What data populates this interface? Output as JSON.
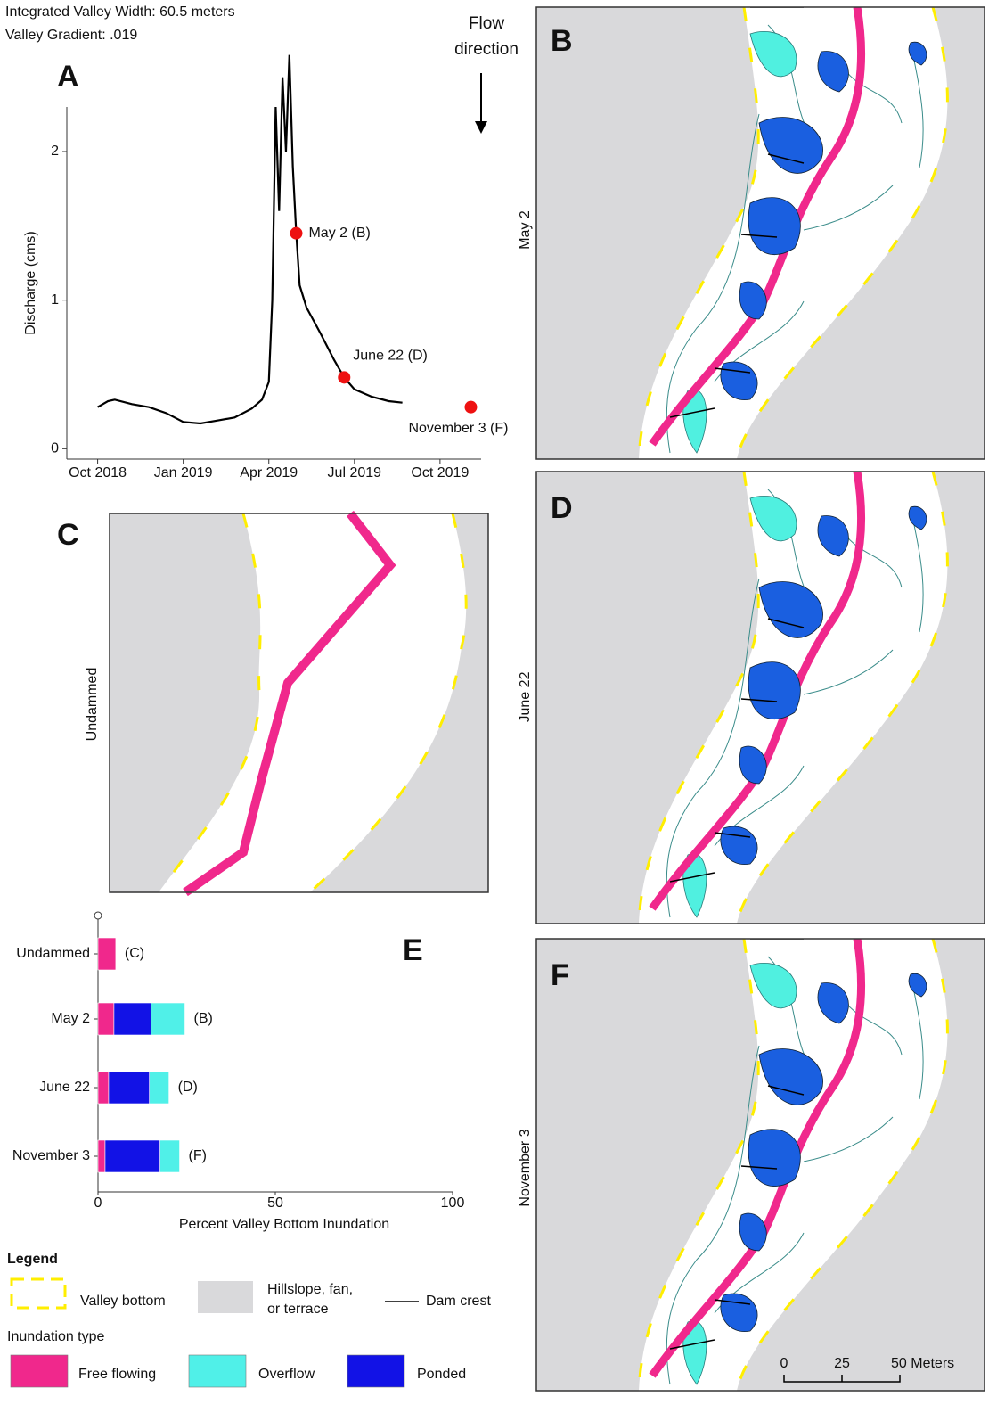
{
  "header": {
    "width_note": "Integrated Valley Width: 60.5 meters",
    "gradient_note": "Valley Gradient: .019"
  },
  "panels": {
    "a": "A",
    "b": "B",
    "c": "C",
    "d": "D",
    "e": "E",
    "f": "F"
  },
  "flow_direction": "Flow direction",
  "maps": {
    "c": "Undammed",
    "b": "May 2",
    "d": "June 22",
    "f": "November 3"
  },
  "scale_bar": {
    "labels": [
      "0",
      "25",
      "50 Meters"
    ]
  },
  "legend": {
    "title": "Legend",
    "valley_bottom": "Valley bottom",
    "hillslope": "Hillslope, fan, or terrace",
    "dam_crest": "Dam crest",
    "inundation_title": "Inundation type"
  },
  "chart_data": [
    {
      "type": "line",
      "ylabel": "Discharge (cms)",
      "color": "#000000",
      "x": [
        2018.75,
        2018.78,
        2018.8,
        2018.85,
        2018.9,
        2018.95,
        2019.0,
        2019.05,
        2019.1,
        2019.15,
        2019.2,
        2019.23,
        2019.25,
        2019.26,
        2019.27,
        2019.28,
        2019.29,
        2019.3,
        2019.31,
        2019.32,
        2019.33,
        2019.34,
        2019.36,
        2019.4,
        2019.44,
        2019.47,
        2019.5,
        2019.55,
        2019.6,
        2019.64
      ],
      "values": [
        0.28,
        0.32,
        0.33,
        0.3,
        0.28,
        0.24,
        0.18,
        0.17,
        0.19,
        0.21,
        0.27,
        0.33,
        0.45,
        1.0,
        2.3,
        1.6,
        2.5,
        2.0,
        2.65,
        1.9,
        1.45,
        1.1,
        0.95,
        0.78,
        0.6,
        0.48,
        0.4,
        0.35,
        0.32,
        0.31
      ],
      "xlim": [
        2018.66,
        2019.87
      ],
      "ylim": [
        -0.07,
        2.3
      ],
      "xticks": [
        {
          "value": 2018.75,
          "label": "Oct 2018"
        },
        {
          "value": 2019.0,
          "label": "Jan 2019"
        },
        {
          "value": 2019.25,
          "label": "Apr 2019"
        },
        {
          "value": 2019.5,
          "label": "Jul 2019"
        },
        {
          "value": 2019.75,
          "label": "Oct 2019"
        }
      ],
      "yticks": [
        0,
        1,
        2
      ],
      "annotations": [
        {
          "x": 2019.33,
          "y": 1.45,
          "label": "May 2 (B)"
        },
        {
          "x": 2019.47,
          "y": 0.48,
          "label": "June 22 (D)"
        },
        {
          "x": 2019.84,
          "y": 0.28,
          "label": "November 3 (F)"
        }
      ],
      "annotation_color": "#ee1111"
    },
    {
      "type": "hbar",
      "xlabel": "Percent Valley Bottom Inundation",
      "categories": [
        "Undammed",
        "May 2",
        "June 22",
        "November 3"
      ],
      "series": [
        {
          "name": "Free flowing",
          "color": "#f0288c",
          "values": [
            5,
            4.5,
            3,
            2
          ]
        },
        {
          "name": "Ponded",
          "color": "#1212e6",
          "values": [
            0,
            10.5,
            11.5,
            15.5
          ]
        },
        {
          "name": "Overflow",
          "color": "#50f0e8",
          "values": [
            0,
            9.5,
            5.5,
            5.5
          ]
        }
      ],
      "bar_labels": [
        "(C)",
        "(B)",
        "(D)",
        "(F)"
      ],
      "xlim": [
        0,
        100
      ],
      "xticks": [
        0,
        50,
        100
      ]
    }
  ]
}
